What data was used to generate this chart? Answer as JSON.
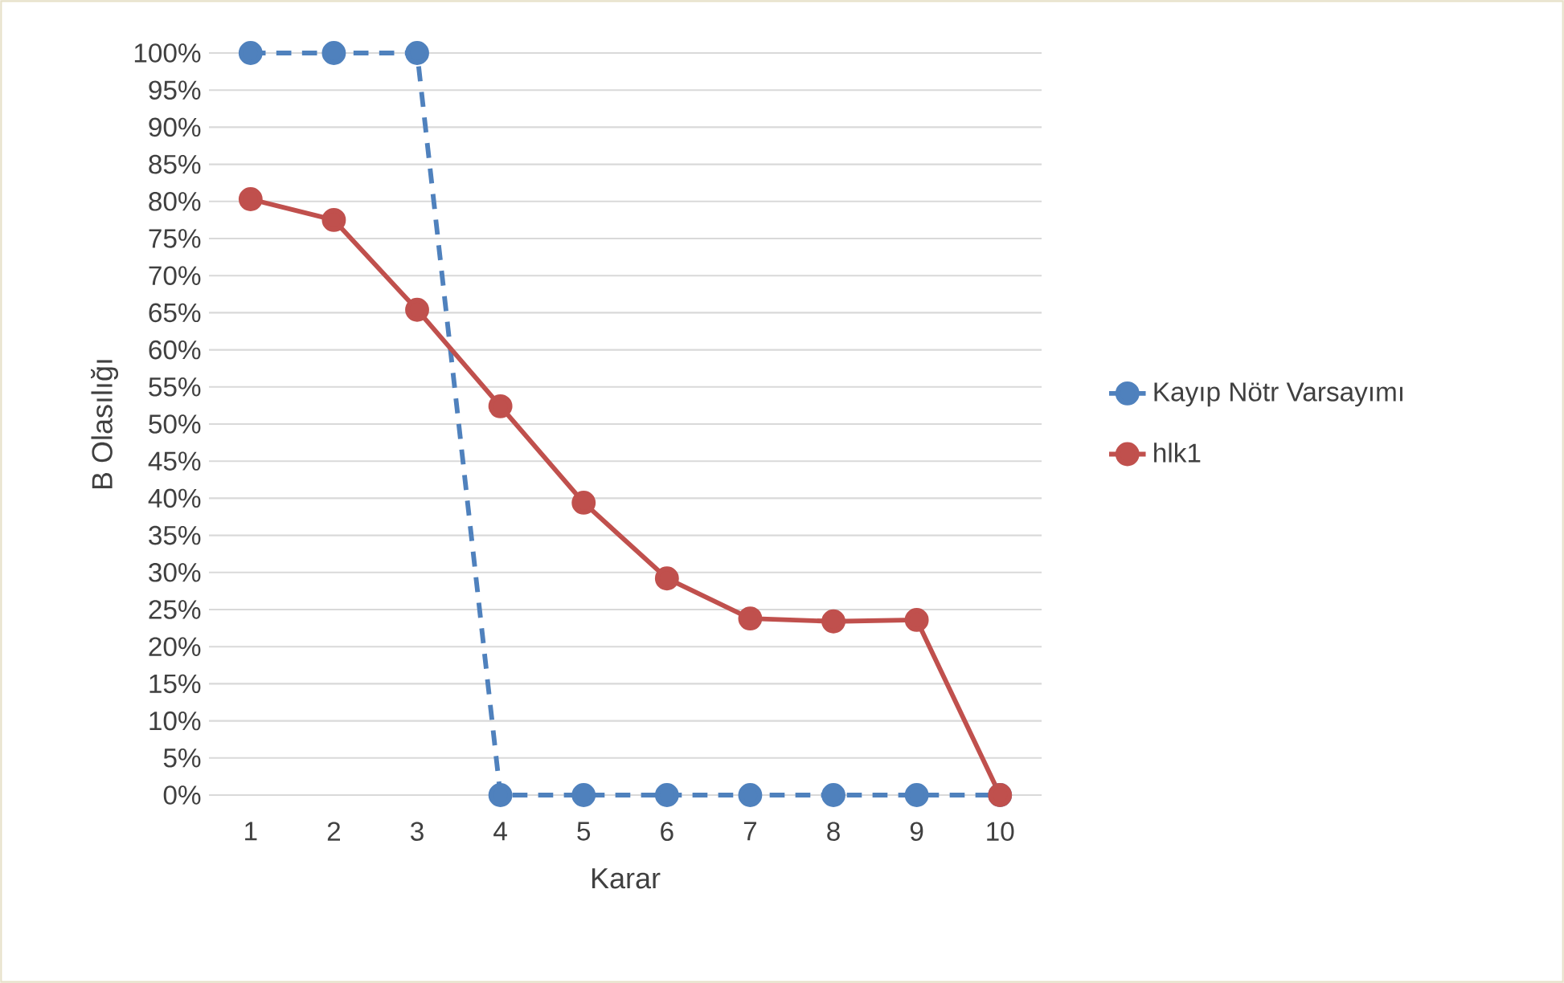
{
  "chart_data": {
    "type": "line",
    "xlabel": "Karar",
    "ylabel": "B Olasılığı",
    "categories": [
      "1",
      "2",
      "3",
      "4",
      "5",
      "6",
      "7",
      "8",
      "9",
      "10"
    ],
    "series": [
      {
        "name": "Kayıp Nötr Varsayımı",
        "color": "#4f81bd",
        "line_style": "dashed",
        "values": [
          100,
          100,
          100,
          0,
          0,
          0,
          0,
          0,
          0,
          0
        ]
      },
      {
        "name": "hlk1",
        "color": "#c0504d",
        "line_style": "solid",
        "values": [
          80.3,
          77.5,
          65.4,
          52.4,
          39.4,
          29.2,
          23.8,
          23.4,
          23.6,
          0
        ]
      }
    ],
    "ylim": [
      0,
      100
    ],
    "yticks": [
      {
        "value": 0,
        "label": "0%"
      },
      {
        "value": 5,
        "label": "5%"
      },
      {
        "value": 10,
        "label": "10%"
      },
      {
        "value": 15,
        "label": "15%"
      },
      {
        "value": 20,
        "label": "20%"
      },
      {
        "value": 25,
        "label": "25%"
      },
      {
        "value": 30,
        "label": "30%"
      },
      {
        "value": 35,
        "label": "35%"
      },
      {
        "value": 40,
        "label": "40%"
      },
      {
        "value": 45,
        "label": "45%"
      },
      {
        "value": 50,
        "label": "50%"
      },
      {
        "value": 55,
        "label": "55%"
      },
      {
        "value": 60,
        "label": "60%"
      },
      {
        "value": 65,
        "label": "65%"
      },
      {
        "value": 70,
        "label": "70%"
      },
      {
        "value": 75,
        "label": "75%"
      },
      {
        "value": 80,
        "label": "80%"
      },
      {
        "value": 85,
        "label": "85%"
      },
      {
        "value": 90,
        "label": "90%"
      },
      {
        "value": 95,
        "label": "95%"
      },
      {
        "value": 100,
        "label": "100%"
      }
    ],
    "grid": "y",
    "legend": "right",
    "marker": "circle"
  }
}
